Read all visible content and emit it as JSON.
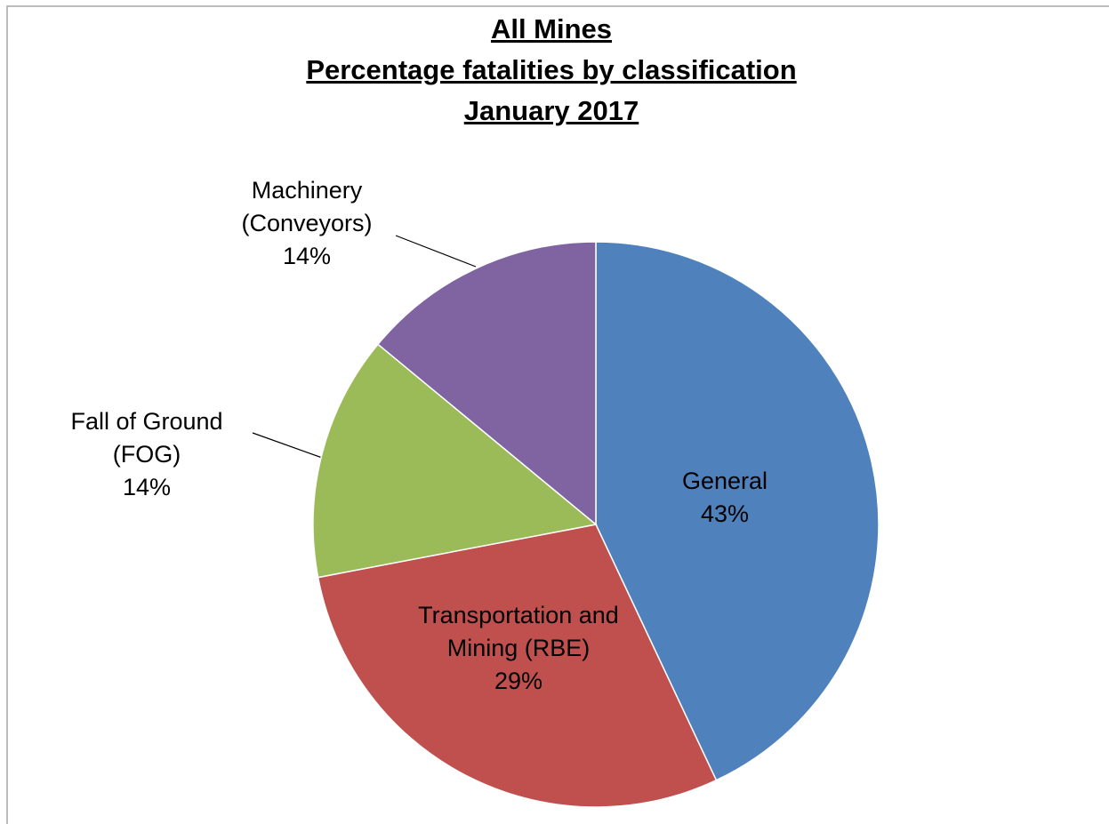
{
  "chart_data": {
    "type": "pie",
    "title": [
      "All Mines",
      "Percentage fatalities by classification",
      "January 2017"
    ],
    "categories": [
      "General",
      "Transportation and Mining (RBE)",
      "Fall of Ground (FOG)",
      "Machinery (Conveyors)"
    ],
    "values": [
      43,
      29,
      14,
      14
    ],
    "value_labels": [
      "43%",
      "29%",
      "14%",
      "14%"
    ],
    "colors": [
      "#4f81bd",
      "#c0504d",
      "#9bbb59",
      "#8064a2"
    ]
  }
}
